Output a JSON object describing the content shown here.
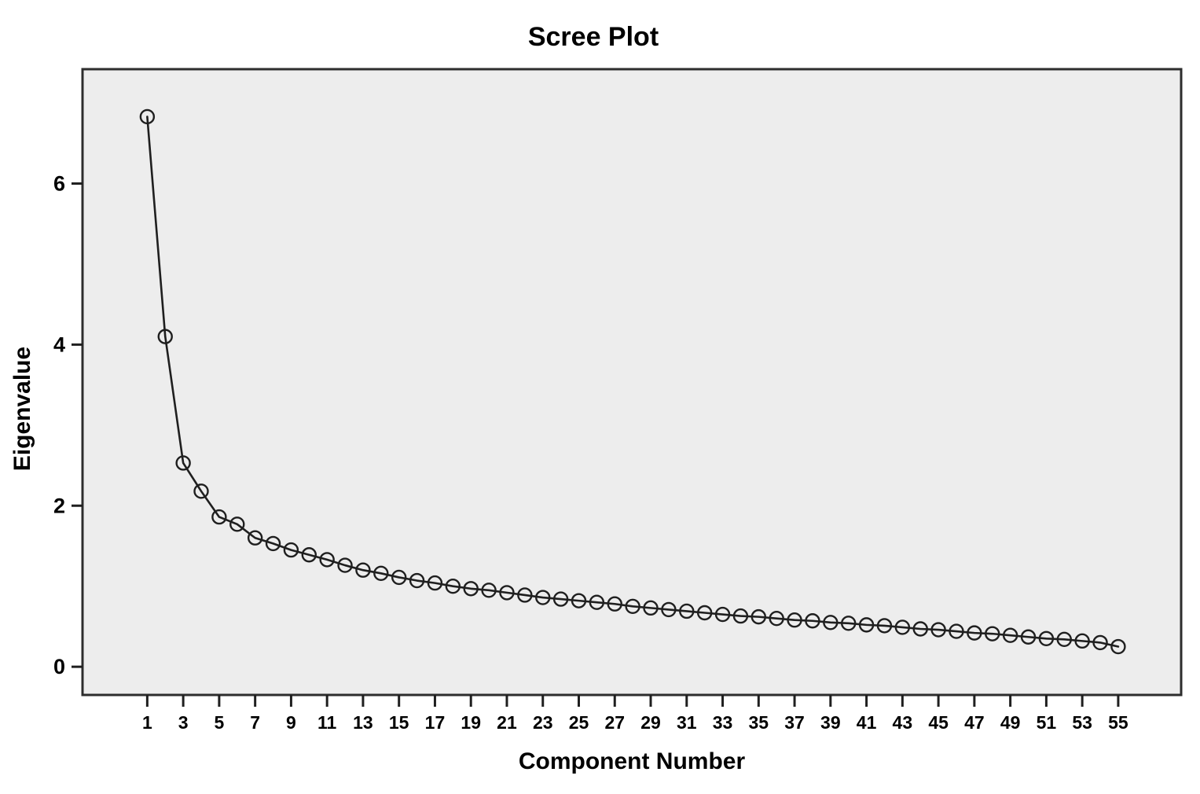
{
  "chart_data": {
    "type": "line",
    "title": "Scree Plot",
    "xlabel": "Component Number",
    "ylabel": "Eigenvalue",
    "x": [
      1,
      2,
      3,
      4,
      5,
      6,
      7,
      8,
      9,
      10,
      11,
      12,
      13,
      14,
      15,
      16,
      17,
      18,
      19,
      20,
      21,
      22,
      23,
      24,
      25,
      26,
      27,
      28,
      29,
      30,
      31,
      32,
      33,
      34,
      35,
      36,
      37,
      38,
      39,
      40,
      41,
      42,
      43,
      44,
      45,
      46,
      47,
      48,
      49,
      50,
      51,
      52,
      53,
      54,
      55
    ],
    "values": [
      6.83,
      4.1,
      2.53,
      2.18,
      1.86,
      1.77,
      1.6,
      1.53,
      1.45,
      1.39,
      1.33,
      1.26,
      1.2,
      1.16,
      1.11,
      1.07,
      1.04,
      1.0,
      0.97,
      0.95,
      0.92,
      0.89,
      0.86,
      0.84,
      0.82,
      0.8,
      0.78,
      0.75,
      0.73,
      0.71,
      0.69,
      0.67,
      0.65,
      0.63,
      0.62,
      0.6,
      0.58,
      0.57,
      0.55,
      0.54,
      0.52,
      0.51,
      0.49,
      0.47,
      0.46,
      0.44,
      0.42,
      0.41,
      0.39,
      0.37,
      0.35,
      0.34,
      0.32,
      0.3,
      0.25
    ],
    "x_tick_labels": [
      "1",
      "3",
      "5",
      "7",
      "9",
      "11",
      "13",
      "15",
      "17",
      "19",
      "21",
      "23",
      "25",
      "27",
      "29",
      "31",
      "33",
      "35",
      "37",
      "39",
      "41",
      "43",
      "45",
      "47",
      "49",
      "51",
      "53",
      "55"
    ],
    "x_tick_values": [
      1,
      3,
      5,
      7,
      9,
      11,
      13,
      15,
      17,
      19,
      21,
      23,
      25,
      27,
      29,
      31,
      33,
      35,
      37,
      39,
      41,
      43,
      45,
      47,
      49,
      51,
      53,
      55
    ],
    "y_tick_labels": [
      "0",
      "2",
      "4",
      "6"
    ],
    "y_tick_values": [
      0,
      2,
      4,
      6
    ],
    "xlim": [
      -2.6,
      58.5
    ],
    "ylim": [
      -0.35,
      7.42
    ],
    "grid": false,
    "legend": "none",
    "marker": "open-circle",
    "colors": {
      "line": "#1f1f1f",
      "marker_stroke": "#1f1f1f",
      "plot_background": "#ededed",
      "plot_border": "#2d2d2d",
      "tick": "#1f1f1f",
      "text": "#000000",
      "page_background": "#ffffff"
    }
  }
}
